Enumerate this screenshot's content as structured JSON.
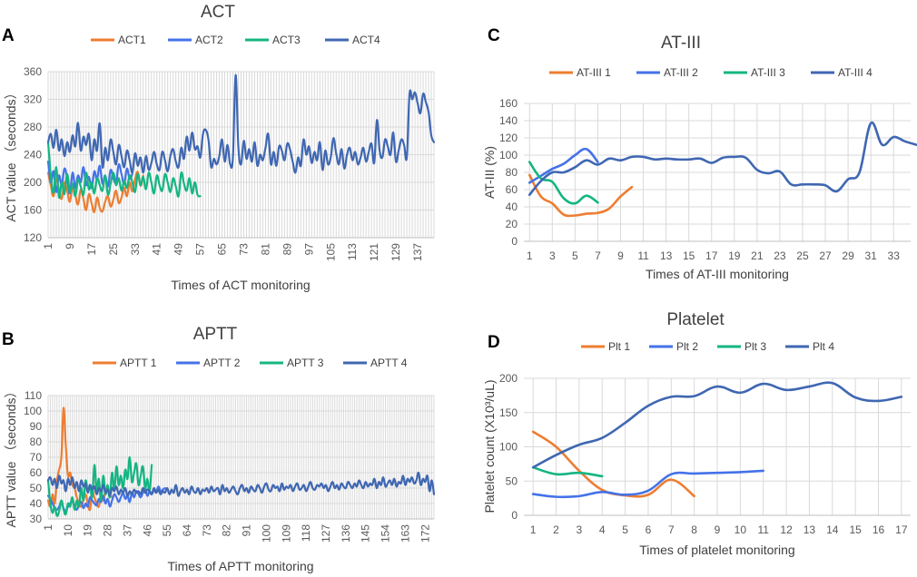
{
  "colors": {
    "s1": "#ED7D31",
    "s2": "#4472E8",
    "s3": "#14B582",
    "s4": "#3F67B2"
  },
  "chart_data": [
    {
      "id": "A",
      "panel_letter": "A",
      "type": "line",
      "title": "ACT",
      "xlabel": "Times of ACT monitoring",
      "ylabel": "ACT value （seconds）",
      "ylim": [
        120,
        360
      ],
      "yticks": [
        120,
        160,
        200,
        240,
        280,
        320,
        360
      ],
      "xlim": [
        1,
        143
      ],
      "xticks": [
        1,
        9,
        17,
        25,
        33,
        41,
        49,
        57,
        65,
        73,
        81,
        89,
        97,
        105,
        113,
        121,
        129,
        137
      ],
      "xtick_rotate": true,
      "series": [
        {
          "name": "ACT1",
          "color_key": "s1",
          "x_start": 1,
          "values": [
            214,
            195,
            180,
            205,
            190,
            176,
            200,
            188,
            172,
            195,
            182,
            168,
            190,
            176,
            160,
            183,
            170,
            157,
            178,
            163,
            158,
            172,
            180,
            165,
            175,
            188,
            170,
            178,
            192,
            180,
            200,
            187,
            205,
            215,
            195,
            210
          ]
        },
        {
          "name": "ACT2",
          "color_key": "s2",
          "x_start": 1,
          "values": [
            230,
            200,
            216,
            186,
            210,
            196,
            220,
            206,
            184,
            214,
            192,
            210,
            200,
            222,
            196,
            208,
            192,
            216,
            204,
            224,
            198,
            210,
            194,
            218,
            206,
            200,
            226,
            212,
            198,
            220,
            205,
            212
          ]
        },
        {
          "name": "ACT3",
          "color_key": "s3",
          "x_start": 1,
          "values": [
            258,
            210,
            185,
            222,
            178,
            200,
            183,
            212,
            186,
            198,
            180,
            204,
            194,
            182,
            214,
            190,
            200,
            184,
            206,
            196,
            188,
            210,
            182,
            198,
            214,
            196,
            206,
            188,
            202,
            192,
            210,
            200,
            186,
            212,
            196,
            208,
            190,
            214,
            200,
            184,
            210,
            196,
            188,
            212,
            200,
            186,
            206,
            194,
            180,
            214,
            198,
            188,
            206,
            184,
            200,
            182,
            180
          ]
        },
        {
          "name": "ACT4",
          "color_key": "s4",
          "x_start": 1,
          "values": [
            258,
            270,
            250,
            276,
            246,
            262,
            238,
            258,
            244,
            268,
            252,
            286,
            246,
            266,
            254,
            270,
            232,
            262,
            246,
            285,
            222,
            250,
            232,
            262,
            244,
            226,
            254,
            238,
            222,
            246,
            232,
            214,
            242,
            224,
            236,
            214,
            238,
            218,
            228,
            244,
            226,
            218,
            244,
            232,
            216,
            238,
            248,
            230,
            222,
            250,
            234,
            266,
            246,
            272,
            248,
            252,
            236,
            270,
            276,
            262,
            222,
            234,
            226,
            238,
            262,
            230,
            254,
            226,
            236,
            355,
            252,
            226,
            260,
            234,
            248,
            230,
            258,
            224,
            240,
            232,
            250,
            270,
            226,
            244,
            224,
            252,
            246,
            232,
            256,
            248,
            230,
            214,
            236,
            224,
            262,
            240,
            252,
            228,
            244,
            232,
            258,
            218,
            246,
            226,
            236,
            264,
            242,
            226,
            248,
            220,
            240,
            250,
            232,
            244,
            226,
            236,
            250,
            230,
            244,
            256,
            228,
            290,
            246,
            236,
            262,
            252,
            240,
            272,
            230,
            246,
            262,
            254,
            236,
            328,
            320,
            330,
            314,
            300,
            328,
            316,
            302,
            268,
            258
          ]
        }
      ]
    },
    {
      "id": "B",
      "panel_letter": "B",
      "type": "line",
      "title": "APTT",
      "xlabel": "Times of APTT monitoring",
      "ylabel": "APTT value （seconds）",
      "ylim": [
        30,
        110
      ],
      "yticks": [
        30,
        40,
        50,
        60,
        70,
        80,
        90,
        100,
        110
      ],
      "xlim": [
        1,
        176
      ],
      "xticks": [
        1,
        10,
        19,
        28,
        37,
        46,
        55,
        64,
        73,
        82,
        91,
        100,
        109,
        118,
        127,
        136,
        145,
        154,
        163,
        172
      ],
      "xtick_rotate": true,
      "series": [
        {
          "name": "APTT 1",
          "color_key": "s1",
          "x_start": 1,
          "values": [
            42,
            38,
            46,
            40,
            55,
            62,
            70,
            102,
            78,
            58,
            60,
            52,
            50,
            44,
            40,
            38,
            42,
            46,
            40,
            36,
            48,
            44,
            40,
            38,
            45,
            42,
            48,
            50,
            46,
            44
          ]
        },
        {
          "name": "APTT 2",
          "color_key": "s2",
          "x_start": 1,
          "values": [
            45,
            43,
            40,
            37,
            36,
            38,
            41,
            37,
            35,
            38,
            40,
            42,
            38,
            36,
            39,
            41,
            37,
            40,
            38,
            44,
            42,
            40,
            39,
            43,
            41,
            45,
            40,
            43,
            38,
            42,
            46,
            44,
            41,
            44,
            47,
            43,
            45,
            41,
            47,
            44,
            48,
            46,
            44,
            47,
            50,
            45,
            48,
            46,
            49,
            47,
            51,
            48,
            49,
            50
          ]
        },
        {
          "name": "APTT 3",
          "color_key": "s3",
          "x_start": 1,
          "values": [
            55,
            40,
            34,
            38,
            32,
            35,
            42,
            36,
            33,
            40,
            38,
            44,
            36,
            42,
            38,
            50,
            42,
            55,
            48,
            52,
            44,
            65,
            48,
            56,
            42,
            58,
            46,
            52,
            44,
            60,
            48,
            64,
            52,
            58,
            50,
            62,
            56,
            70,
            54,
            60,
            66,
            52,
            58,
            64,
            50,
            56,
            48,
            65
          ]
        },
        {
          "name": "APTT 4",
          "color_key": "s4",
          "x_start": 1,
          "values": [
            55,
            57,
            52,
            56,
            50,
            58,
            53,
            55,
            48,
            56,
            52,
            57,
            50,
            54,
            48,
            55,
            51,
            53,
            47,
            52,
            49,
            51,
            46,
            50,
            48,
            52,
            47,
            49,
            45,
            50,
            48,
            51,
            46,
            49,
            47,
            50,
            45,
            48,
            46,
            49,
            47,
            48,
            46,
            50,
            47,
            49,
            48,
            46,
            50,
            47,
            49,
            46,
            48,
            47,
            50,
            46,
            49,
            47,
            52,
            45,
            48,
            50,
            47,
            49,
            46,
            51,
            48,
            47,
            50,
            46,
            49,
            48,
            50,
            47,
            51,
            48,
            49,
            50,
            46,
            52,
            48,
            50,
            47,
            49,
            51,
            48,
            46,
            50,
            52,
            48,
            50,
            47,
            51,
            49,
            48,
            52,
            50,
            47,
            51,
            53,
            49,
            48,
            52,
            50,
            51,
            48,
            53,
            49,
            51,
            50,
            52,
            48,
            51,
            53,
            49,
            50,
            52,
            48,
            51,
            54,
            50,
            49,
            52,
            51,
            53,
            50,
            52,
            48,
            51,
            54,
            50,
            52,
            49,
            53,
            51,
            50,
            54,
            52,
            50,
            53,
            51,
            55,
            52,
            50,
            54,
            51,
            53,
            52,
            56,
            50,
            54,
            52,
            57,
            51,
            53,
            55,
            52,
            56,
            51,
            54,
            53,
            58,
            52,
            56,
            54,
            57,
            53,
            55,
            60,
            52,
            56,
            54,
            58,
            48,
            55,
            46
          ]
        }
      ]
    },
    {
      "id": "C",
      "panel_letter": "C",
      "type": "line",
      "title": "AT-III",
      "xlabel": "Times of AT-III monitoring",
      "ylabel": "AT-III (%)",
      "ylim": [
        0,
        160
      ],
      "yticks": [
        0,
        20,
        40,
        60,
        80,
        100,
        120,
        140,
        160
      ],
      "xlim": [
        0.5,
        34.5
      ],
      "xticks": [
        1,
        3,
        5,
        7,
        9,
        11,
        13,
        15,
        17,
        19,
        21,
        23,
        25,
        27,
        29,
        31,
        33
      ],
      "xtick_rotate": false,
      "series": [
        {
          "name": "AT-III 1",
          "color_key": "s1",
          "x_start": 1,
          "values": [
            77,
            52,
            44,
            31,
            30,
            32,
            33,
            38,
            52,
            63
          ]
        },
        {
          "name": "AT-III 2",
          "color_key": "s2",
          "x_start": 1,
          "values": [
            68,
            76,
            84,
            90,
            100,
            107,
            92
          ]
        },
        {
          "name": "AT-III 3",
          "color_key": "s3",
          "x_start": 1,
          "values": [
            92,
            73,
            69,
            50,
            44,
            53,
            45
          ]
        },
        {
          "name": "AT-III 4",
          "color_key": "s4",
          "x_start": 1,
          "values": [
            54,
            70,
            80,
            80,
            86,
            94,
            89,
            96,
            94,
            98,
            98,
            95,
            96,
            95,
            95,
            96,
            91,
            97,
            98,
            97,
            83,
            79,
            81,
            66,
            66,
            66,
            65,
            58,
            72,
            80,
            137,
            112,
            121,
            116,
            112
          ]
        }
      ]
    },
    {
      "id": "D",
      "panel_letter": "D",
      "type": "line",
      "title": "Platelet",
      "xlabel": "Times of platelet monitoring",
      "ylabel": "Platelet count (X10³/uL)",
      "ylim": [
        0,
        200
      ],
      "yticks": [
        0,
        50,
        100,
        150,
        200
      ],
      "xlim": [
        0.6,
        17.4
      ],
      "xticks": [
        1,
        2,
        3,
        4,
        5,
        6,
        7,
        8,
        9,
        10,
        11,
        12,
        13,
        14,
        15,
        16,
        17
      ],
      "xtick_rotate": false,
      "series": [
        {
          "name": "Plt 1",
          "color_key": "s1",
          "x_start": 1,
          "values": [
            122,
            100,
            65,
            37,
            29,
            30,
            52,
            28
          ]
        },
        {
          "name": "Plt 2",
          "color_key": "s2",
          "x_start": 1,
          "values": [
            31,
            27,
            28,
            34,
            30,
            36,
            60,
            61,
            62,
            63,
            65
          ]
        },
        {
          "name": "Plt 3",
          "color_key": "s3",
          "x_start": 1,
          "values": [
            70,
            60,
            62,
            57
          ]
        },
        {
          "name": "Plt 4",
          "color_key": "s4",
          "x_start": 1,
          "values": [
            70,
            88,
            103,
            113,
            135,
            160,
            173,
            174,
            188,
            179,
            192,
            183,
            188,
            193,
            172,
            167,
            173
          ]
        }
      ]
    }
  ]
}
